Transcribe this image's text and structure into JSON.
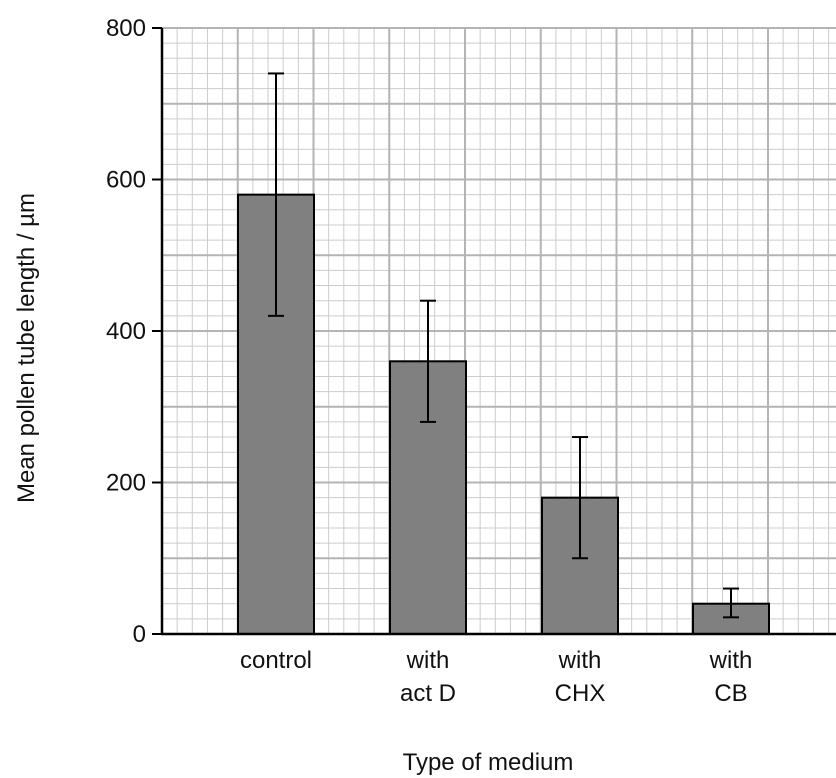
{
  "chart_data": {
    "type": "bar",
    "title": "",
    "xlabel": "Type of medium",
    "ylabel": "Mean pollen tube length / µm",
    "categories": [
      [
        "control"
      ],
      [
        "with",
        "act D"
      ],
      [
        "with",
        "CHX"
      ],
      [
        "with",
        "CB"
      ]
    ],
    "values": [
      580,
      360,
      180,
      40
    ],
    "error_bars": [
      {
        "low": 420,
        "high": 740
      },
      {
        "low": 280,
        "high": 440
      },
      {
        "low": 100,
        "high": 260
      },
      {
        "low": 22,
        "high": 60
      }
    ],
    "ylim": [
      0,
      800
    ],
    "yticks": [
      0,
      200,
      400,
      600,
      800
    ],
    "grid": true,
    "minor_grid_step": 20,
    "major_grid_step": 100,
    "colors": {
      "bar": "#808080",
      "bar_edge": "#000000",
      "grid_major": "#b4b4b4",
      "grid_minor": "#cccccc",
      "axis": "#000000"
    }
  }
}
